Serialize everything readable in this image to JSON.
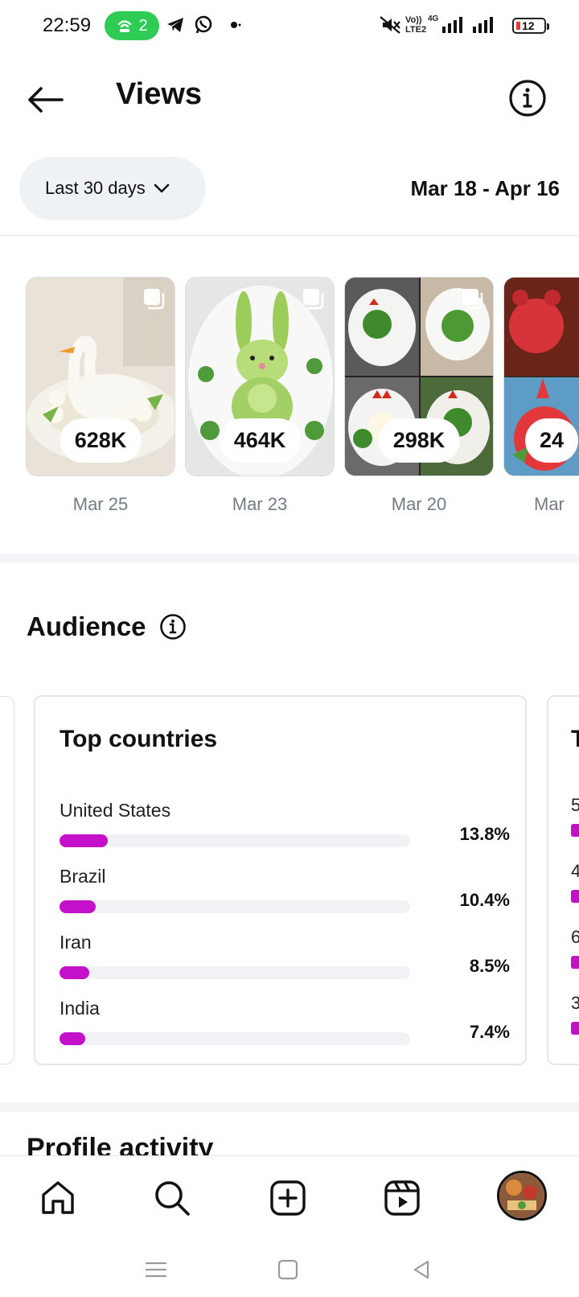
{
  "status_bar": {
    "time": "22:59",
    "hotspot_count": "2",
    "volte_top": "Vo))",
    "volte_bottom": "LTE2",
    "network_type": "4G",
    "battery_level": "12",
    "icons": [
      "hotspot-icon",
      "telegram-icon",
      "whatsapp-icon",
      "notification-dot-icon",
      "mute-icon",
      "signal-icon",
      "battery-icon"
    ]
  },
  "header": {
    "title": "Views",
    "icons": [
      "back-arrow-icon",
      "info-icon"
    ]
  },
  "filter": {
    "range_label": "Last 30 days",
    "date_range": "Mar 18 - Apr 16"
  },
  "posts": [
    {
      "views": "628K",
      "date": "Mar 25"
    },
    {
      "views": "464K",
      "date": "Mar 23"
    },
    {
      "views": "298K",
      "date": "Mar 20"
    },
    {
      "views": "24",
      "date": "Mar"
    }
  ],
  "audience": {
    "title": "Audience",
    "card": {
      "title": "Top countries",
      "rows": [
        {
          "name": "United States",
          "pct_label": "13.8%",
          "fraction": 0.138
        },
        {
          "name": "Brazil",
          "pct_label": "10.4%",
          "fraction": 0.104
        },
        {
          "name": "Iran",
          "pct_label": "8.5%",
          "fraction": 0.085
        },
        {
          "name": "India",
          "pct_label": "7.4%",
          "fraction": 0.074
        }
      ]
    },
    "next_card": {
      "title_partial": "T",
      "values": [
        "5",
        "4",
        "6",
        "3"
      ]
    }
  },
  "next_section_title": "Profile activity",
  "bottom_nav": {
    "items": [
      "home-icon",
      "search-icon",
      "create-icon",
      "reels-icon",
      "profile-avatar"
    ]
  },
  "colors": {
    "accent_bar": "#c410c9",
    "pill_bg": "#eff2f5",
    "hotspot_green": "#2ecc55",
    "battery_low": "#e53935"
  }
}
